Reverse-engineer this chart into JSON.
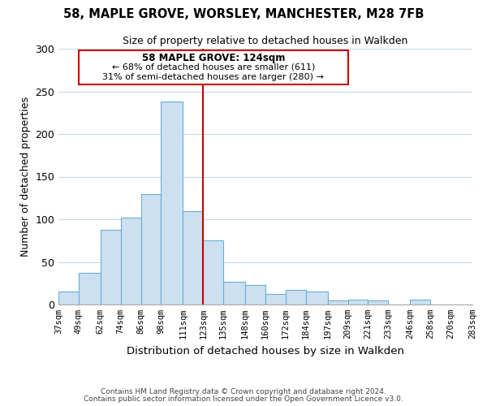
{
  "title": "58, MAPLE GROVE, WORSLEY, MANCHESTER, M28 7FB",
  "subtitle": "Size of property relative to detached houses in Walkden",
  "xlabel": "Distribution of detached houses by size in Walkden",
  "ylabel": "Number of detached properties",
  "bin_labels": [
    "37sqm",
    "49sqm",
    "62sqm",
    "74sqm",
    "86sqm",
    "98sqm",
    "111sqm",
    "123sqm",
    "135sqm",
    "148sqm",
    "160sqm",
    "172sqm",
    "184sqm",
    "197sqm",
    "209sqm",
    "221sqm",
    "233sqm",
    "246sqm",
    "258sqm",
    "270sqm",
    "283sqm"
  ],
  "bar_heights": [
    15,
    37,
    88,
    102,
    130,
    238,
    110,
    75,
    27,
    23,
    12,
    17,
    15,
    5,
    6,
    5,
    0,
    6,
    0,
    0
  ],
  "bar_color": "#cce0f0",
  "bar_edgecolor": "#6aaed6",
  "vline_x": 123,
  "vline_color": "#cc0000",
  "annotation_line1": "58 MAPLE GROVE: 124sqm",
  "annotation_line2": "← 68% of detached houses are smaller (611)",
  "annotation_line3": "31% of semi-detached houses are larger (280) →",
  "annotation_box_edgecolor": "#cc0000",
  "ylim": [
    0,
    300
  ],
  "yticks": [
    0,
    50,
    100,
    150,
    200,
    250,
    300
  ],
  "footnote1": "Contains HM Land Registry data © Crown copyright and database right 2024.",
  "footnote2": "Contains public sector information licensed under the Open Government Licence v3.0.",
  "bg_color": "#ffffff",
  "grid_color": "#c8d8e8"
}
